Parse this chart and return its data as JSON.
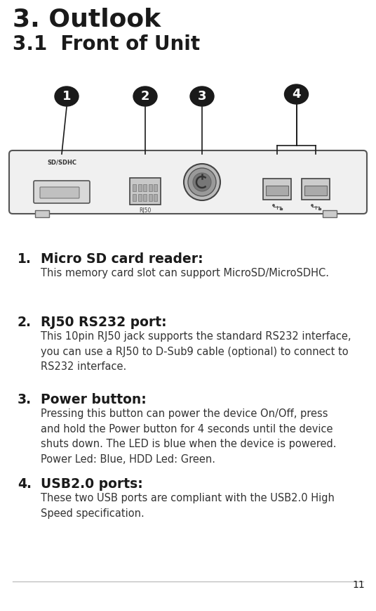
{
  "title1": "3. Outlook",
  "title2": "3.1  Front of Unit",
  "title1_fontsize": 26,
  "title2_fontsize": 20,
  "title_color": "#1a1a1a",
  "bg_color": "#ffffff",
  "items": [
    {
      "num": "1.",
      "heading": "Micro SD card reader:",
      "body": "This memory card slot can support MicroSD/MicroSDHC."
    },
    {
      "num": "2.",
      "heading": "RJ50 RS232 port:",
      "body": "This 10pin RJ50 jack supports the standard RS232 interface,\nyou can use a RJ50 to D-Sub9 cable (optional) to connect to\nRS232 interface."
    },
    {
      "num": "3.",
      "heading": "Power button:",
      "body": "Pressing this button can power the device On/Off, press\nand hold the Power button for 4 seconds until the device\nshuts down. The LED is blue when the device is powered.\nPower Led: Blue, HDD Led: Green."
    },
    {
      "num": "4.",
      "heading": "USB2.0 ports:",
      "body": "These two USB ports are compliant with the USB2.0 High\nSpeed specification."
    }
  ],
  "heading_fontsize": 13.5,
  "body_fontsize": 10.5,
  "num_fontsize": 13.5,
  "page_num": "11",
  "bubble_color": "#1a1a1a",
  "bubble_text_color": "#ffffff",
  "line_color": "#1a1a1a",
  "panel_color": "#f0f0f0",
  "panel_edge": "#555555"
}
